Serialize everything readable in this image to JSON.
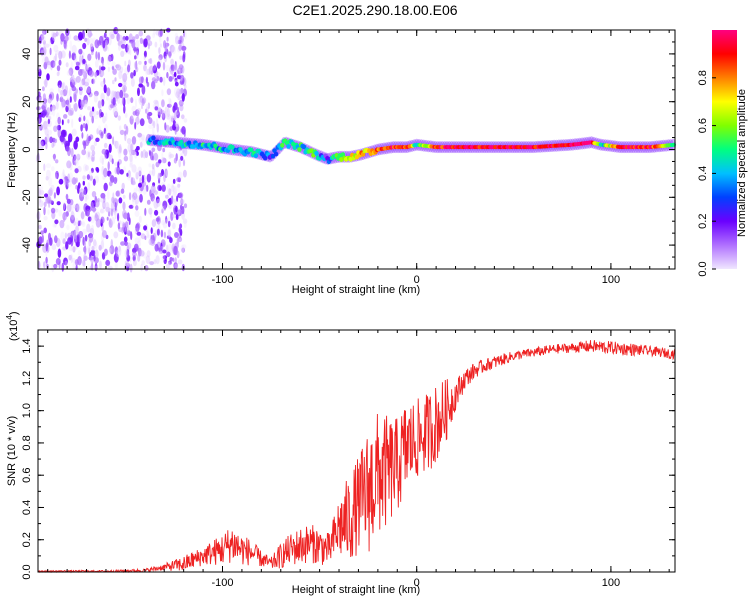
{
  "figure_title": "C2E1.2025.290.18.00.E06",
  "chart_data": [
    {
      "type": "heatmap",
      "title": "C2E1.2025.290.18.00.E06",
      "xlabel": "Height of straight line (km)",
      "ylabel": "Frequency (Hz)",
      "xlim": [
        -195,
        133
      ],
      "ylim": [
        -50,
        50
      ],
      "xticks": [
        -100,
        0,
        100
      ],
      "yticks": [
        -40,
        -20,
        0,
        20,
        40
      ],
      "colorbar": {
        "label": "Normalized spectral amplitude",
        "range": [
          0.0,
          1.0
        ],
        "ticks": [
          "0.0",
          "0.2",
          "0.4",
          "0.6",
          "0.8"
        ],
        "colors": [
          "#f0e6ff",
          "#b070ff",
          "#6a00ff",
          "#0040ff",
          "#00c0ff",
          "#00ff80",
          "#80ff00",
          "#ffff00",
          "#ff8000",
          "#ff0000",
          "#ff0080"
        ]
      },
      "noise_region_x": [
        -195,
        -125
      ],
      "signal_track": {
        "x": [
          -138,
          -125,
          -110,
          -95,
          -85,
          -75,
          -68,
          -60,
          -52,
          -46,
          -40,
          -34,
          -28,
          -20,
          -12,
          -5,
          0,
          10,
          20,
          40,
          60,
          80,
          90,
          95,
          105,
          120,
          133
        ],
        "freq": [
          4,
          3,
          2,
          0,
          -1,
          -3,
          3,
          1,
          -2,
          -4,
          -3,
          -3,
          -2,
          0,
          1,
          1,
          2,
          1,
          1,
          1,
          1,
          2,
          3,
          2,
          1,
          1,
          2
        ],
        "amplitude": [
          0.35,
          0.4,
          0.45,
          0.4,
          0.45,
          0.3,
          0.5,
          0.45,
          0.5,
          0.2,
          0.6,
          0.7,
          0.75,
          0.85,
          0.9,
          0.9,
          0.45,
          0.9,
          0.95,
          0.95,
          0.95,
          0.95,
          0.98,
          0.4,
          0.95,
          0.9,
          0.5
        ]
      }
    },
    {
      "type": "line",
      "title": "",
      "xlabel": "Height of straight line (km)",
      "ylabel": "SNR (10 * v/v)",
      "y_multiplier": "(x10",
      "y_multiplier_exp": "4",
      "y_multiplier_close": ")",
      "xlim": [
        -195,
        133
      ],
      "ylim": [
        0,
        1.5
      ],
      "xticks": [
        -100,
        0,
        100
      ],
      "yticks": [
        "0.0",
        "0.2",
        "0.4",
        "0.6",
        "0.8",
        "1.0",
        "1.2",
        "1.4"
      ],
      "series": [
        {
          "name": "SNR",
          "color": "#ee2222",
          "x": [
            -195,
            -180,
            -160,
            -140,
            -130,
            -120,
            -110,
            -100,
            -95,
            -90,
            -85,
            -80,
            -75,
            -70,
            -65,
            -60,
            -55,
            -50,
            -45,
            -40,
            -35,
            -30,
            -25,
            -20,
            -15,
            -10,
            -5,
            0,
            5,
            10,
            15,
            20,
            25,
            30,
            35,
            40,
            50,
            60,
            70,
            80,
            90,
            100,
            110,
            120,
            133
          ],
          "values": [
            0.005,
            0.005,
            0.005,
            0.01,
            0.03,
            0.05,
            0.1,
            0.14,
            0.18,
            0.14,
            0.12,
            0.08,
            0.05,
            0.1,
            0.14,
            0.16,
            0.18,
            0.16,
            0.14,
            0.28,
            0.32,
            0.42,
            0.5,
            0.6,
            0.62,
            0.66,
            0.78,
            0.82,
            0.86,
            0.92,
            1.0,
            1.1,
            1.2,
            1.25,
            1.28,
            1.3,
            1.34,
            1.36,
            1.38,
            1.39,
            1.4,
            1.39,
            1.38,
            1.37,
            1.35
          ],
          "noise": [
            0.005,
            0.005,
            0.005,
            0.01,
            0.02,
            0.05,
            0.06,
            0.1,
            0.12,
            0.1,
            0.08,
            0.05,
            0.04,
            0.08,
            0.1,
            0.12,
            0.12,
            0.12,
            0.1,
            0.2,
            0.28,
            0.3,
            0.4,
            0.4,
            0.35,
            0.3,
            0.3,
            0.25,
            0.25,
            0.25,
            0.2,
            0.1,
            0.06,
            0.05,
            0.04,
            0.04,
            0.03,
            0.03,
            0.03,
            0.03,
            0.04,
            0.04,
            0.04,
            0.03,
            0.03
          ]
        }
      ]
    }
  ]
}
